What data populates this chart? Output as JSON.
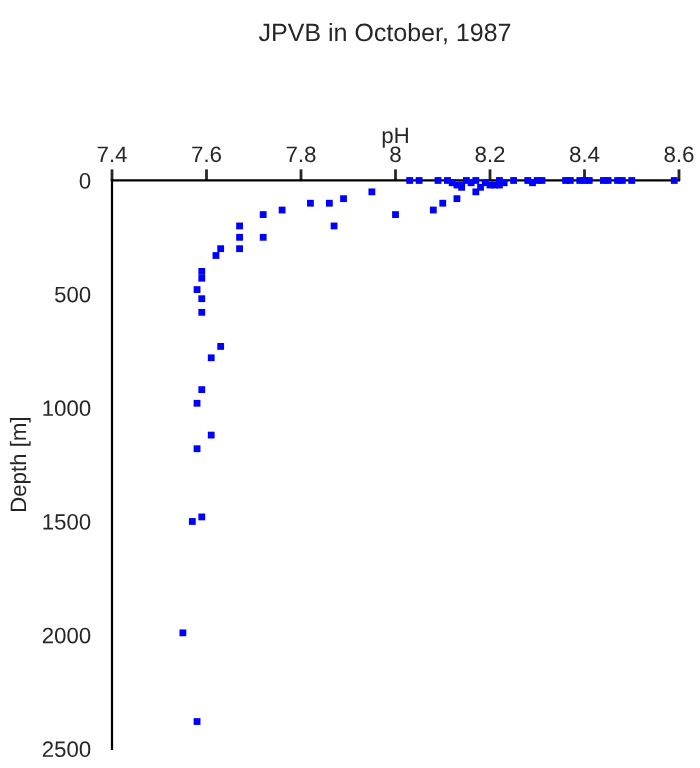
{
  "chart_data": {
    "type": "scatter",
    "title": "JPVB in October, 1987",
    "xlabel": "pH",
    "ylabel": "Depth [m]",
    "x": [
      7.95,
      8.0,
      8.08,
      8.1,
      8.13,
      7.89,
      7.86,
      7.82,
      7.76,
      7.72,
      7.87,
      7.72,
      7.67,
      7.67,
      7.67,
      7.63,
      7.62,
      7.59,
      7.59,
      7.58,
      7.59,
      7.59,
      7.63,
      7.61,
      7.59,
      7.58,
      7.61,
      7.58,
      7.59,
      7.57,
      7.55,
      7.58,
      8.03,
      8.05,
      8.09,
      8.11,
      8.12,
      8.13,
      8.14,
      8.14,
      8.15,
      8.16,
      8.17,
      8.17,
      8.18,
      8.19,
      8.2,
      8.21,
      8.22,
      8.22,
      8.23,
      8.25,
      8.28,
      8.29,
      8.3,
      8.31,
      8.36,
      8.37,
      8.39,
      8.4,
      8.41,
      8.44,
      8.45,
      8.47,
      8.48,
      8.5,
      8.59
    ],
    "series": [
      {
        "color": "#0000ff",
        "values": [
          50,
          150,
          130,
          100,
          80,
          80,
          100,
          100,
          130,
          150,
          200,
          250,
          200,
          250,
          300,
          300,
          330,
          400,
          430,
          480,
          520,
          580,
          730,
          780,
          920,
          980,
          1120,
          1180,
          1480,
          1500,
          1990,
          2380,
          0,
          0,
          0,
          0,
          10,
          20,
          30,
          20,
          0,
          10,
          0,
          50,
          30,
          10,
          20,
          20,
          20,
          0,
          10,
          0,
          0,
          10,
          0,
          0,
          0,
          0,
          0,
          0,
          0,
          0,
          0,
          0,
          0,
          0,
          0
        ]
      }
    ],
    "xlim": [
      7.4,
      8.6
    ],
    "ylim": [
      2500,
      0
    ],
    "xticks": [
      7.4,
      7.6,
      7.8,
      8,
      8.2,
      8.4,
      8.6
    ],
    "yticks": [
      0,
      500,
      1000,
      1500,
      2000,
      2500
    ],
    "marker": "square",
    "grid": false,
    "legend": false
  }
}
